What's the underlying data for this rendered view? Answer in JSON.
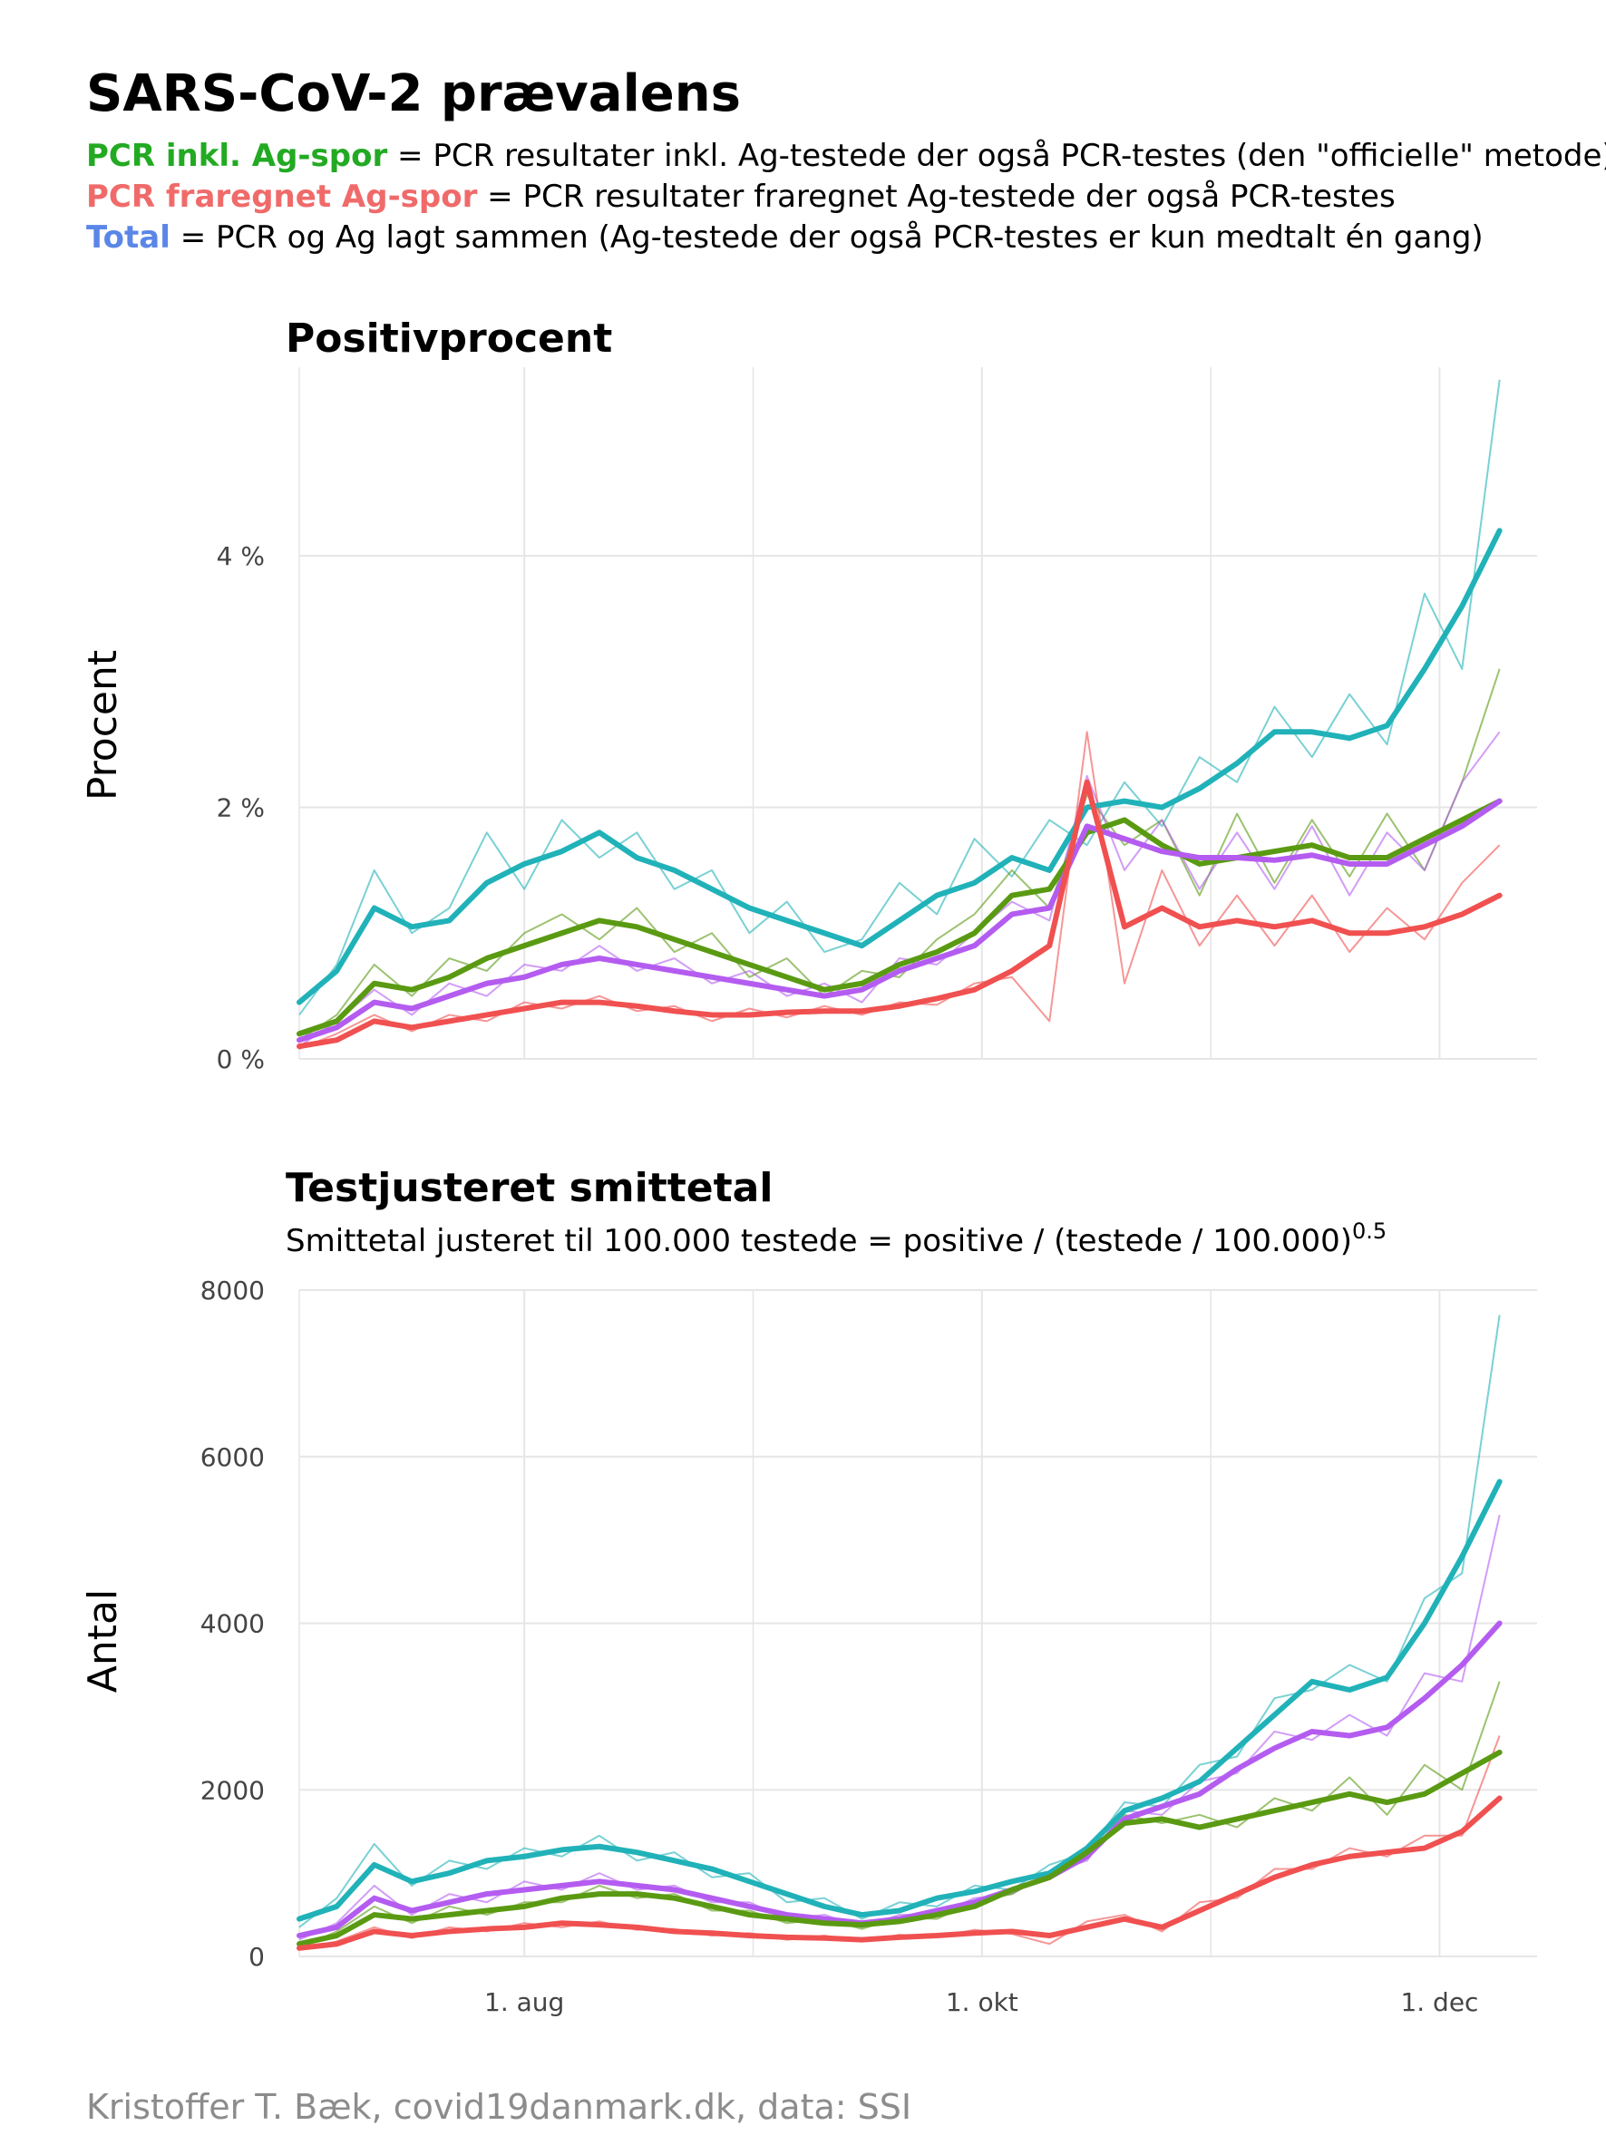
{
  "header": {
    "title": "SARS-CoV-2 prævalens",
    "legend_lines": [
      {
        "label": "PCR inkl. Ag-spor",
        "label_color": "#22aa22",
        "text": " = PCR resultater inkl. Ag-testede der også PCR-testes (den \"officielle\" metode)"
      },
      {
        "label": "PCR fraregnet Ag-spor",
        "label_color": "#f06a6a",
        "text": " = PCR resultater fraregnet Ag-testede der også PCR-testes"
      },
      {
        "label": "Total",
        "label_color": "#5a86e8",
        "text": " = PCR og Ag lagt sammen (Ag-testede der også PCR-testes er kun medtalt én gang)"
      }
    ]
  },
  "caption": "Kristoffer T. Bæk, covid19danmark.dk, data: SSI",
  "colors": {
    "teal": "#20b2b8",
    "green": "#5a9a12",
    "red": "#f05050",
    "purple": "#b45cf0",
    "grid": "#e6e6e6",
    "axis_text": "#444444",
    "caption": "#8c8c8c"
  },
  "chart_data": [
    {
      "type": "line",
      "title": "Positivprocent",
      "ylabel": "Procent",
      "ylim": [
        0,
        5.5
      ],
      "y_ticks": [
        0,
        2,
        4
      ],
      "y_tick_labels": [
        "0 %",
        "2 %",
        "4 %"
      ],
      "x_ticks": [
        "1. aug",
        "1. okt",
        "1. dec"
      ],
      "x_tick_days": [
        30,
        91,
        152
      ],
      "x_range_days": [
        0,
        165
      ],
      "grid": true,
      "x": [
        0,
        5,
        10,
        15,
        20,
        25,
        30,
        35,
        40,
        45,
        50,
        55,
        60,
        65,
        70,
        75,
        80,
        85,
        90,
        95,
        100,
        105,
        110,
        115,
        120,
        125,
        130,
        135,
        140,
        145,
        150,
        155,
        160
      ],
      "series": [
        {
          "color": "#20b2b8",
          "smooth_values": [
            0.45,
            0.7,
            1.2,
            1.05,
            1.1,
            1.4,
            1.55,
            1.65,
            1.8,
            1.6,
            1.5,
            1.35,
            1.2,
            1.1,
            1.0,
            0.9,
            1.1,
            1.3,
            1.4,
            1.6,
            1.5,
            2.0,
            2.05,
            2.0,
            2.15,
            2.35,
            2.6,
            2.6,
            2.55,
            2.65,
            3.1,
            3.6,
            4.2
          ],
          "raw_values": [
            0.35,
            0.75,
            1.5,
            1.0,
            1.2,
            1.8,
            1.35,
            1.9,
            1.6,
            1.8,
            1.35,
            1.5,
            1.0,
            1.25,
            0.85,
            0.95,
            1.4,
            1.15,
            1.75,
            1.45,
            1.9,
            1.7,
            2.2,
            1.85,
            2.4,
            2.2,
            2.8,
            2.4,
            2.9,
            2.5,
            3.7,
            3.1,
            5.4
          ]
        },
        {
          "color": "#5a9a12",
          "smooth_values": [
            0.2,
            0.3,
            0.6,
            0.55,
            0.65,
            0.8,
            0.9,
            1.0,
            1.1,
            1.05,
            0.95,
            0.85,
            0.75,
            0.65,
            0.55,
            0.6,
            0.75,
            0.85,
            1.0,
            1.3,
            1.35,
            1.8,
            1.9,
            1.7,
            1.55,
            1.6,
            1.65,
            1.7,
            1.6,
            1.6,
            1.75,
            1.9,
            2.05
          ],
          "raw_values": [
            0.15,
            0.35,
            0.75,
            0.5,
            0.8,
            0.7,
            1.0,
            1.15,
            0.95,
            1.2,
            0.85,
            1.0,
            0.65,
            0.8,
            0.5,
            0.7,
            0.65,
            0.95,
            1.15,
            1.5,
            1.2,
            2.1,
            1.7,
            1.9,
            1.3,
            1.95,
            1.4,
            1.9,
            1.45,
            1.95,
            1.5,
            2.2,
            3.1
          ]
        },
        {
          "color": "#b45cf0",
          "smooth_values": [
            0.15,
            0.25,
            0.45,
            0.4,
            0.5,
            0.6,
            0.65,
            0.75,
            0.8,
            0.75,
            0.7,
            0.65,
            0.6,
            0.55,
            0.5,
            0.55,
            0.7,
            0.8,
            0.9,
            1.15,
            1.2,
            1.85,
            1.75,
            1.65,
            1.6,
            1.6,
            1.58,
            1.62,
            1.55,
            1.55,
            1.7,
            1.85,
            2.05
          ],
          "raw_values": [
            0.1,
            0.3,
            0.55,
            0.35,
            0.6,
            0.5,
            0.75,
            0.7,
            0.9,
            0.7,
            0.8,
            0.6,
            0.7,
            0.5,
            0.6,
            0.45,
            0.8,
            0.75,
            1.0,
            1.25,
            1.1,
            2.25,
            1.5,
            1.9,
            1.35,
            1.8,
            1.35,
            1.85,
            1.3,
            1.8,
            1.5,
            2.2,
            2.6
          ]
        },
        {
          "color": "#f05050",
          "smooth_values": [
            0.1,
            0.15,
            0.3,
            0.25,
            0.3,
            0.35,
            0.4,
            0.45,
            0.45,
            0.42,
            0.38,
            0.35,
            0.35,
            0.37,
            0.38,
            0.38,
            0.42,
            0.48,
            0.55,
            0.7,
            0.9,
            2.2,
            1.05,
            1.2,
            1.05,
            1.1,
            1.05,
            1.1,
            1.0,
            1.0,
            1.05,
            1.15,
            1.3
          ],
          "raw_values": [
            0.08,
            0.2,
            0.35,
            0.22,
            0.35,
            0.3,
            0.45,
            0.4,
            0.5,
            0.38,
            0.42,
            0.3,
            0.4,
            0.33,
            0.42,
            0.35,
            0.45,
            0.43,
            0.6,
            0.65,
            0.3,
            2.6,
            0.6,
            1.5,
            0.9,
            1.3,
            0.9,
            1.3,
            0.85,
            1.2,
            0.95,
            1.4,
            1.7
          ]
        }
      ]
    },
    {
      "type": "line",
      "title": "Testjusteret smittetal",
      "subtitle": "Smittetal justeret til 100.000 testede = positive / (testede / 100.000)",
      "subtitle_superscript": "0.5",
      "ylabel": "Antal",
      "ylim": [
        0,
        8000
      ],
      "y_ticks": [
        0,
        2000,
        4000,
        6000,
        8000
      ],
      "y_tick_labels": [
        "0",
        "2000",
        "4000",
        "6000",
        "8000"
      ],
      "x_ticks": [
        "1. aug",
        "1. okt",
        "1. dec"
      ],
      "x_tick_days": [
        30,
        91,
        152
      ],
      "x_range_days": [
        0,
        165
      ],
      "grid": true,
      "x": [
        0,
        5,
        10,
        15,
        20,
        25,
        30,
        35,
        40,
        45,
        50,
        55,
        60,
        65,
        70,
        75,
        80,
        85,
        90,
        95,
        100,
        105,
        110,
        115,
        120,
        125,
        130,
        135,
        140,
        145,
        150,
        155,
        160
      ],
      "series": [
        {
          "color": "#20b2b8",
          "smooth_values": [
            450,
            600,
            1100,
            900,
            1000,
            1150,
            1200,
            1280,
            1320,
            1250,
            1150,
            1050,
            900,
            750,
            600,
            500,
            550,
            700,
            780,
            900,
            1000,
            1300,
            1750,
            1900,
            2100,
            2500,
            2900,
            3300,
            3200,
            3350,
            4000,
            4800,
            5700
          ],
          "raw_values": [
            350,
            700,
            1350,
            850,
            1150,
            1050,
            1300,
            1200,
            1450,
            1150,
            1250,
            950,
            1000,
            650,
            700,
            450,
            650,
            600,
            850,
            800,
            1100,
            1250,
            1850,
            1800,
            2300,
            2400,
            3100,
            3200,
            3500,
            3300,
            4300,
            4600,
            7700
          ]
        },
        {
          "color": "#b45cf0",
          "smooth_values": [
            250,
            350,
            700,
            550,
            650,
            750,
            800,
            850,
            900,
            850,
            800,
            700,
            600,
            500,
            450,
            400,
            450,
            550,
            650,
            800,
            950,
            1200,
            1650,
            1800,
            1950,
            2250,
            2500,
            2700,
            2650,
            2750,
            3100,
            3500,
            4000
          ],
          "raw_values": [
            200,
            400,
            850,
            500,
            750,
            650,
            900,
            800,
            1000,
            800,
            850,
            650,
            650,
            450,
            500,
            350,
            500,
            500,
            700,
            750,
            1000,
            1150,
            1750,
            1700,
            2100,
            2200,
            2700,
            2600,
            2900,
            2650,
            3400,
            3300,
            5300
          ]
        },
        {
          "color": "#5a9a12",
          "smooth_values": [
            150,
            250,
            500,
            450,
            500,
            550,
            600,
            700,
            750,
            750,
            700,
            600,
            500,
            450,
            400,
            380,
            420,
            500,
            600,
            800,
            950,
            1250,
            1600,
            1650,
            1550,
            1650,
            1750,
            1850,
            1950,
            1850,
            1950,
            2200,
            2450
          ],
          "raw_values": [
            100,
            300,
            600,
            400,
            600,
            500,
            650,
            650,
            850,
            700,
            750,
            550,
            550,
            400,
            450,
            330,
            470,
            450,
            650,
            750,
            1000,
            1200,
            1700,
            1600,
            1700,
            1550,
            1900,
            1750,
            2150,
            1700,
            2300,
            2000,
            3300
          ]
        },
        {
          "color": "#f05050",
          "smooth_values": [
            100,
            150,
            300,
            250,
            300,
            330,
            350,
            400,
            380,
            350,
            300,
            280,
            250,
            230,
            220,
            200,
            230,
            250,
            280,
            300,
            250,
            350,
            450,
            350,
            550,
            750,
            950,
            1100,
            1200,
            1250,
            1300,
            1500,
            1900
          ],
          "raw_values": [
            80,
            180,
            350,
            220,
            350,
            300,
            400,
            350,
            420,
            320,
            330,
            250,
            280,
            200,
            250,
            180,
            260,
            230,
            320,
            270,
            150,
            420,
            500,
            300,
            650,
            700,
            1050,
            1050,
            1300,
            1200,
            1450,
            1450,
            2650
          ]
        }
      ]
    }
  ]
}
